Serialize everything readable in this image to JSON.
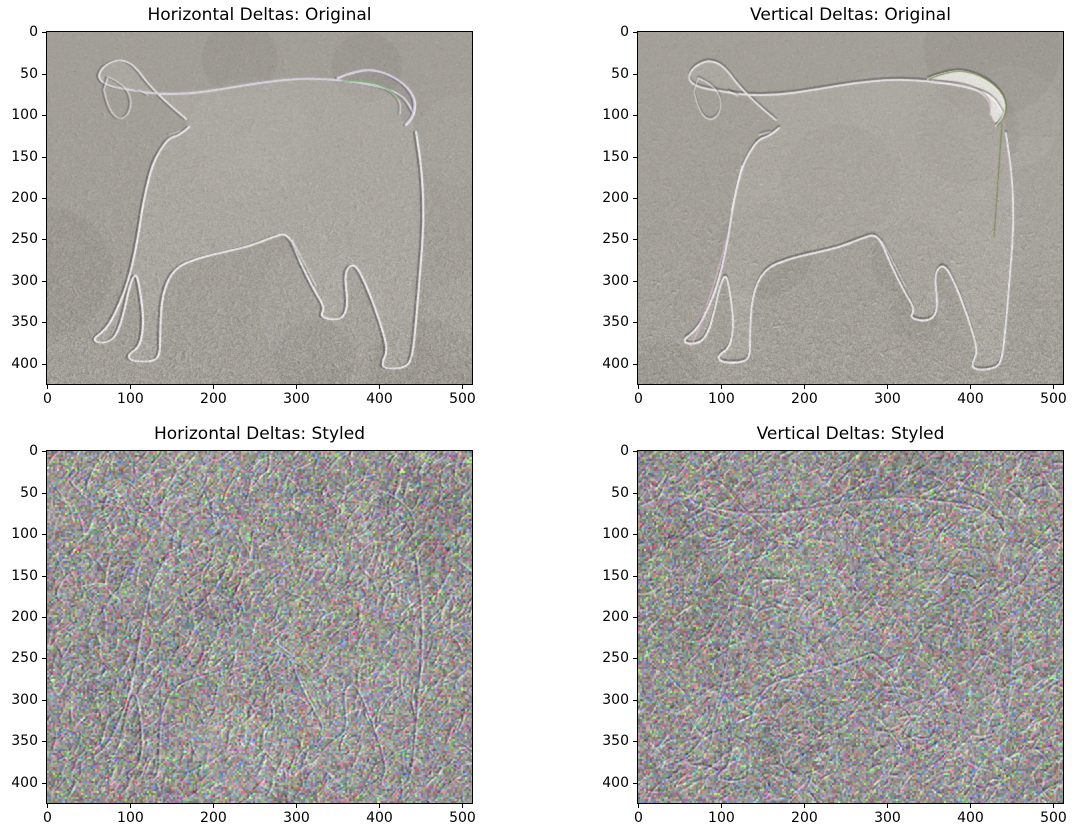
{
  "figure": {
    "background": "#ffffff",
    "text_color": "#000000",
    "spine_color": "#000000",
    "layout": "2x2 grid of image subplots"
  },
  "chart_data": [
    {
      "type": "heatmap",
      "render_style": "imshow image plot",
      "title": "Horizontal Deltas: Original",
      "xlabel": "",
      "ylabel": "",
      "x_ticks": [
        0,
        100,
        200,
        300,
        400,
        500
      ],
      "y_ticks": [
        0,
        50,
        100,
        150,
        200,
        250,
        300,
        350,
        400
      ],
      "x_extent": [
        0,
        511
      ],
      "y_extent": [
        0,
        424
      ],
      "grid": false,
      "style": "original",
      "delta_axis": "horizontal",
      "content": {
        "subject": "Emboss-like horizontal pixel deltas of a photo of a standing labrador retriever facing right with tail curled over its back",
        "base_color": "#a39f98",
        "edge_tints": [
          "#d8c8e4",
          "#70b66a"
        ],
        "texture": "fine neutral grain, denser toward the bottom (grass region)"
      }
    },
    {
      "type": "heatmap",
      "render_style": "imshow image plot",
      "title": "Vertical Deltas: Original",
      "xlabel": "",
      "ylabel": "",
      "x_ticks": [
        0,
        100,
        200,
        300,
        400,
        500
      ],
      "y_ticks": [
        0,
        50,
        100,
        150,
        200,
        250,
        300,
        350,
        400
      ],
      "x_extent": [
        0,
        511
      ],
      "y_extent": [
        0,
        424
      ],
      "grid": false,
      "style": "original",
      "delta_axis": "vertical",
      "content": {
        "subject": "Emboss-like vertical pixel deltas of the same labrador photo; tail reads as a bright crescent with a dark green edge",
        "base_color": "#a4a099",
        "edge_tints": [
          "#e2bcd8",
          "#52701f"
        ],
        "texture": "fine neutral grain, horizontal edges emphasized"
      }
    },
    {
      "type": "heatmap",
      "render_style": "imshow image plot",
      "title": "Horizontal Deltas: Styled",
      "xlabel": "",
      "ylabel": "",
      "x_ticks": [
        0,
        100,
        200,
        300,
        400,
        500
      ],
      "y_ticks": [
        0,
        50,
        100,
        150,
        200,
        250,
        300,
        350,
        400
      ],
      "x_extent": [
        0,
        511
      ],
      "y_extent": [
        0,
        424
      ],
      "grid": false,
      "style": "styled",
      "delta_axis": "horizontal",
      "content": {
        "subject": "Horizontal deltas of the style-transferred image: faint dog outline buried in dense multicolored paint-stroke noise",
        "base_color": "#969492",
        "confetti_palette": [
          "#d04040",
          "#3f9f50",
          "#4060d0",
          "#d0c040",
          "#b050c0",
          "#30b0b0"
        ],
        "texture": "coarse high-contrast emboss swirls with RGB confetti speckle"
      }
    },
    {
      "type": "heatmap",
      "render_style": "imshow image plot",
      "title": "Vertical Deltas: Styled",
      "xlabel": "",
      "ylabel": "",
      "x_ticks": [
        0,
        100,
        200,
        300,
        400,
        500
      ],
      "y_ticks": [
        0,
        50,
        100,
        150,
        200,
        250,
        300,
        350,
        400
      ],
      "x_extent": [
        0,
        511
      ],
      "y_extent": [
        0,
        424
      ],
      "grid": false,
      "style": "styled",
      "delta_axis": "vertical",
      "content": {
        "subject": "Vertical deltas of the style-transferred image: faint dog outline buried in dense multicolored paint-stroke noise",
        "base_color": "#969492",
        "confetti_palette": [
          "#d04040",
          "#3f9f50",
          "#4060d0",
          "#d0c040",
          "#b050c0",
          "#30b0b0"
        ],
        "texture": "coarse high-contrast emboss swirls with RGB confetti speckle"
      }
    }
  ]
}
